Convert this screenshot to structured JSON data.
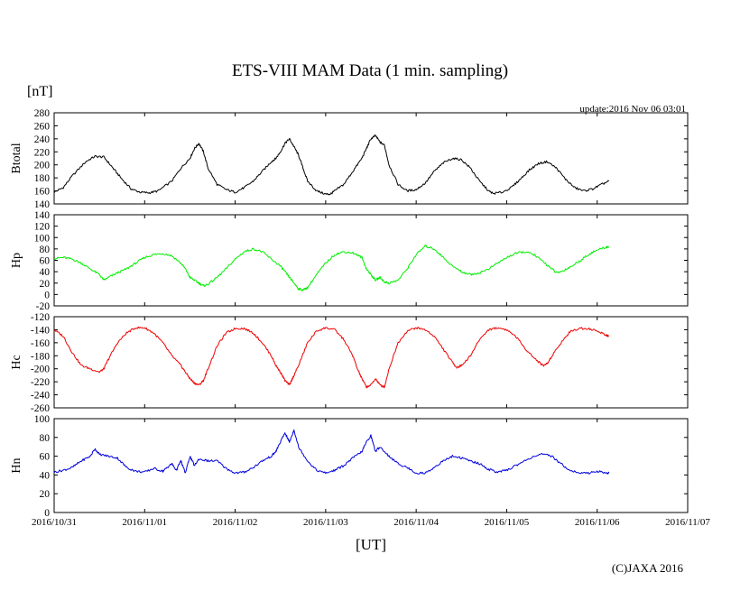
{
  "chart_data": {
    "type": "line",
    "title": "ETS-VIII MAM Data (1 min. sampling)",
    "unit_label": "[nT]",
    "update_text": "update:2016 Nov 06 03:01",
    "xlabel": "[UT]",
    "credit": "(C)JAXA 2016",
    "x_ticks": [
      "2016/10/31",
      "2016/11/01",
      "2016/11/02",
      "2016/11/03",
      "2016/11/04",
      "2016/11/05",
      "2016/11/06",
      "2016/11/07"
    ],
    "x_range_days": [
      0,
      7
    ],
    "panels": [
      {
        "name": "Btotal",
        "ylabel": "Btotal",
        "color": "#000000",
        "ylim": [
          140,
          280
        ],
        "yticks": [
          280,
          260,
          240,
          220,
          200,
          180,
          160,
          140
        ],
        "series": [
          [
            0.0,
            158
          ],
          [
            0.1,
            165
          ],
          [
            0.2,
            183
          ],
          [
            0.35,
            205
          ],
          [
            0.45,
            213
          ],
          [
            0.55,
            212
          ],
          [
            0.65,
            195
          ],
          [
            0.75,
            178
          ],
          [
            0.85,
            163
          ],
          [
            0.95,
            158
          ],
          [
            1.05,
            157
          ],
          [
            1.15,
            160
          ],
          [
            1.3,
            175
          ],
          [
            1.4,
            195
          ],
          [
            1.5,
            210
          ],
          [
            1.55,
            225
          ],
          [
            1.6,
            233
          ],
          [
            1.65,
            220
          ],
          [
            1.7,
            195
          ],
          [
            1.8,
            170
          ],
          [
            1.9,
            162
          ],
          [
            2.0,
            158
          ],
          [
            2.1,
            165
          ],
          [
            2.2,
            175
          ],
          [
            2.3,
            190
          ],
          [
            2.4,
            205
          ],
          [
            2.45,
            210
          ],
          [
            2.5,
            220
          ],
          [
            2.55,
            233
          ],
          [
            2.6,
            240
          ],
          [
            2.65,
            228
          ],
          [
            2.7,
            215
          ],
          [
            2.75,
            195
          ],
          [
            2.8,
            175
          ],
          [
            2.9,
            160
          ],
          [
            3.0,
            155
          ],
          [
            3.05,
            155
          ],
          [
            3.1,
            160
          ],
          [
            3.2,
            170
          ],
          [
            3.3,
            190
          ],
          [
            3.4,
            210
          ],
          [
            3.45,
            225
          ],
          [
            3.5,
            240
          ],
          [
            3.55,
            245
          ],
          [
            3.6,
            235
          ],
          [
            3.65,
            230
          ],
          [
            3.7,
            200
          ],
          [
            3.8,
            170
          ],
          [
            3.9,
            160
          ],
          [
            4.0,
            162
          ],
          [
            4.1,
            172
          ],
          [
            4.2,
            190
          ],
          [
            4.3,
            203
          ],
          [
            4.4,
            210
          ],
          [
            4.5,
            208
          ],
          [
            4.6,
            195
          ],
          [
            4.7,
            175
          ],
          [
            4.8,
            160
          ],
          [
            4.85,
            156
          ],
          [
            4.95,
            158
          ],
          [
            5.05,
            165
          ],
          [
            5.15,
            178
          ],
          [
            5.25,
            192
          ],
          [
            5.35,
            202
          ],
          [
            5.45,
            205
          ],
          [
            5.55,
            195
          ],
          [
            5.65,
            178
          ],
          [
            5.75,
            165
          ],
          [
            5.85,
            160
          ],
          [
            5.95,
            163
          ],
          [
            6.05,
            170
          ],
          [
            6.13,
            175
          ]
        ]
      },
      {
        "name": "Hp",
        "ylabel": "Hp",
        "color": "#00ee00",
        "ylim": [
          -20,
          140
        ],
        "yticks": [
          140,
          120,
          100,
          80,
          60,
          40,
          20,
          0,
          -20
        ],
        "series": [
          [
            0.0,
            63
          ],
          [
            0.1,
            65
          ],
          [
            0.2,
            62
          ],
          [
            0.3,
            55
          ],
          [
            0.4,
            45
          ],
          [
            0.5,
            35
          ],
          [
            0.55,
            25
          ],
          [
            0.6,
            30
          ],
          [
            0.7,
            38
          ],
          [
            0.8,
            45
          ],
          [
            0.9,
            55
          ],
          [
            1.0,
            65
          ],
          [
            1.1,
            70
          ],
          [
            1.2,
            72
          ],
          [
            1.3,
            68
          ],
          [
            1.4,
            55
          ],
          [
            1.45,
            45
          ],
          [
            1.5,
            30
          ],
          [
            1.55,
            25
          ],
          [
            1.6,
            20
          ],
          [
            1.65,
            15
          ],
          [
            1.7,
            18
          ],
          [
            1.8,
            30
          ],
          [
            1.9,
            45
          ],
          [
            2.0,
            62
          ],
          [
            2.1,
            75
          ],
          [
            2.2,
            80
          ],
          [
            2.3,
            75
          ],
          [
            2.4,
            62
          ],
          [
            2.5,
            50
          ],
          [
            2.55,
            40
          ],
          [
            2.6,
            30
          ],
          [
            2.65,
            20
          ],
          [
            2.7,
            10
          ],
          [
            2.75,
            8
          ],
          [
            2.8,
            12
          ],
          [
            2.9,
            35
          ],
          [
            3.0,
            55
          ],
          [
            3.1,
            70
          ],
          [
            3.2,
            75
          ],
          [
            3.3,
            73
          ],
          [
            3.4,
            65
          ],
          [
            3.45,
            45
          ],
          [
            3.5,
            35
          ],
          [
            3.55,
            25
          ],
          [
            3.6,
            30
          ],
          [
            3.65,
            22
          ],
          [
            3.7,
            20
          ],
          [
            3.8,
            25
          ],
          [
            3.9,
            45
          ],
          [
            4.0,
            70
          ],
          [
            4.1,
            85
          ],
          [
            4.2,
            80
          ],
          [
            4.3,
            65
          ],
          [
            4.4,
            50
          ],
          [
            4.5,
            40
          ],
          [
            4.6,
            35
          ],
          [
            4.7,
            38
          ],
          [
            4.8,
            45
          ],
          [
            4.9,
            55
          ],
          [
            5.0,
            65
          ],
          [
            5.1,
            72
          ],
          [
            5.2,
            75
          ],
          [
            5.3,
            70
          ],
          [
            5.4,
            58
          ],
          [
            5.5,
            45
          ],
          [
            5.55,
            38
          ],
          [
            5.6,
            40
          ],
          [
            5.7,
            48
          ],
          [
            5.8,
            58
          ],
          [
            5.9,
            70
          ],
          [
            6.0,
            78
          ],
          [
            6.1,
            83
          ],
          [
            6.13,
            84
          ]
        ]
      },
      {
        "name": "Hc",
        "ylabel": "Hc",
        "color": "#ee0000",
        "ylim": [
          -260,
          -120
        ],
        "yticks": [
          -120,
          -140,
          -160,
          -180,
          -200,
          -220,
          -240,
          -260
        ],
        "series": [
          [
            0.0,
            -140
          ],
          [
            0.1,
            -150
          ],
          [
            0.2,
            -175
          ],
          [
            0.3,
            -195
          ],
          [
            0.4,
            -200
          ],
          [
            0.5,
            -205
          ],
          [
            0.55,
            -200
          ],
          [
            0.6,
            -185
          ],
          [
            0.7,
            -160
          ],
          [
            0.8,
            -145
          ],
          [
            0.9,
            -137
          ],
          [
            1.0,
            -137
          ],
          [
            1.1,
            -145
          ],
          [
            1.2,
            -160
          ],
          [
            1.3,
            -180
          ],
          [
            1.4,
            -195
          ],
          [
            1.45,
            -205
          ],
          [
            1.5,
            -215
          ],
          [
            1.55,
            -222
          ],
          [
            1.6,
            -225
          ],
          [
            1.65,
            -218
          ],
          [
            1.7,
            -200
          ],
          [
            1.8,
            -165
          ],
          [
            1.9,
            -145
          ],
          [
            2.0,
            -138
          ],
          [
            2.1,
            -138
          ],
          [
            2.2,
            -145
          ],
          [
            2.3,
            -160
          ],
          [
            2.4,
            -180
          ],
          [
            2.45,
            -195
          ],
          [
            2.5,
            -205
          ],
          [
            2.55,
            -218
          ],
          [
            2.6,
            -225
          ],
          [
            2.65,
            -210
          ],
          [
            2.7,
            -195
          ],
          [
            2.8,
            -160
          ],
          [
            2.9,
            -142
          ],
          [
            3.0,
            -137
          ],
          [
            3.1,
            -140
          ],
          [
            3.2,
            -155
          ],
          [
            3.3,
            -180
          ],
          [
            3.35,
            -200
          ],
          [
            3.4,
            -215
          ],
          [
            3.45,
            -228
          ],
          [
            3.5,
            -225
          ],
          [
            3.55,
            -215
          ],
          [
            3.6,
            -225
          ],
          [
            3.65,
            -228
          ],
          [
            3.7,
            -200
          ],
          [
            3.8,
            -160
          ],
          [
            3.9,
            -142
          ],
          [
            4.0,
            -137
          ],
          [
            4.1,
            -140
          ],
          [
            4.2,
            -150
          ],
          [
            4.3,
            -170
          ],
          [
            4.4,
            -190
          ],
          [
            4.45,
            -198
          ],
          [
            4.5,
            -195
          ],
          [
            4.6,
            -180
          ],
          [
            4.7,
            -155
          ],
          [
            4.8,
            -140
          ],
          [
            4.9,
            -137
          ],
          [
            5.0,
            -140
          ],
          [
            5.1,
            -150
          ],
          [
            5.2,
            -168
          ],
          [
            5.3,
            -183
          ],
          [
            5.4,
            -195
          ],
          [
            5.45,
            -192
          ],
          [
            5.5,
            -180
          ],
          [
            5.6,
            -160
          ],
          [
            5.7,
            -143
          ],
          [
            5.8,
            -138
          ],
          [
            5.9,
            -138
          ],
          [
            6.0,
            -142
          ],
          [
            6.1,
            -148
          ],
          [
            6.13,
            -150
          ]
        ]
      },
      {
        "name": "Hn",
        "ylabel": "Hn",
        "color": "#0000dd",
        "ylim": [
          0,
          100
        ],
        "yticks": [
          100,
          80,
          60,
          40,
          20,
          0
        ],
        "series": [
          [
            0.0,
            43
          ],
          [
            0.1,
            45
          ],
          [
            0.2,
            48
          ],
          [
            0.3,
            55
          ],
          [
            0.4,
            60
          ],
          [
            0.45,
            68
          ],
          [
            0.5,
            62
          ],
          [
            0.6,
            60
          ],
          [
            0.7,
            58
          ],
          [
            0.8,
            48
          ],
          [
            0.9,
            44
          ],
          [
            1.0,
            43
          ],
          [
            1.1,
            47
          ],
          [
            1.2,
            44
          ],
          [
            1.25,
            48
          ],
          [
            1.3,
            52
          ],
          [
            1.35,
            45
          ],
          [
            1.4,
            55
          ],
          [
            1.45,
            42
          ],
          [
            1.5,
            60
          ],
          [
            1.55,
            50
          ],
          [
            1.6,
            57
          ],
          [
            1.7,
            55
          ],
          [
            1.8,
            55
          ],
          [
            1.9,
            47
          ],
          [
            2.0,
            42
          ],
          [
            2.1,
            43
          ],
          [
            2.2,
            48
          ],
          [
            2.3,
            55
          ],
          [
            2.4,
            60
          ],
          [
            2.45,
            65
          ],
          [
            2.5,
            75
          ],
          [
            2.55,
            85
          ],
          [
            2.6,
            75
          ],
          [
            2.65,
            88
          ],
          [
            2.7,
            70
          ],
          [
            2.8,
            55
          ],
          [
            2.9,
            45
          ],
          [
            3.0,
            42
          ],
          [
            3.1,
            45
          ],
          [
            3.2,
            50
          ],
          [
            3.3,
            58
          ],
          [
            3.4,
            65
          ],
          [
            3.45,
            75
          ],
          [
            3.5,
            82
          ],
          [
            3.55,
            65
          ],
          [
            3.6,
            70
          ],
          [
            3.7,
            60
          ],
          [
            3.8,
            52
          ],
          [
            3.9,
            48
          ],
          [
            4.0,
            42
          ],
          [
            4.1,
            42
          ],
          [
            4.2,
            48
          ],
          [
            4.3,
            55
          ],
          [
            4.4,
            60
          ],
          [
            4.5,
            58
          ],
          [
            4.6,
            55
          ],
          [
            4.7,
            52
          ],
          [
            4.8,
            46
          ],
          [
            4.9,
            43
          ],
          [
            5.0,
            45
          ],
          [
            5.1,
            50
          ],
          [
            5.2,
            55
          ],
          [
            5.3,
            60
          ],
          [
            5.4,
            62
          ],
          [
            5.5,
            60
          ],
          [
            5.6,
            52
          ],
          [
            5.7,
            45
          ],
          [
            5.8,
            42
          ],
          [
            5.9,
            42
          ],
          [
            6.0,
            44
          ],
          [
            6.1,
            42
          ],
          [
            6.13,
            42
          ]
        ]
      }
    ]
  }
}
